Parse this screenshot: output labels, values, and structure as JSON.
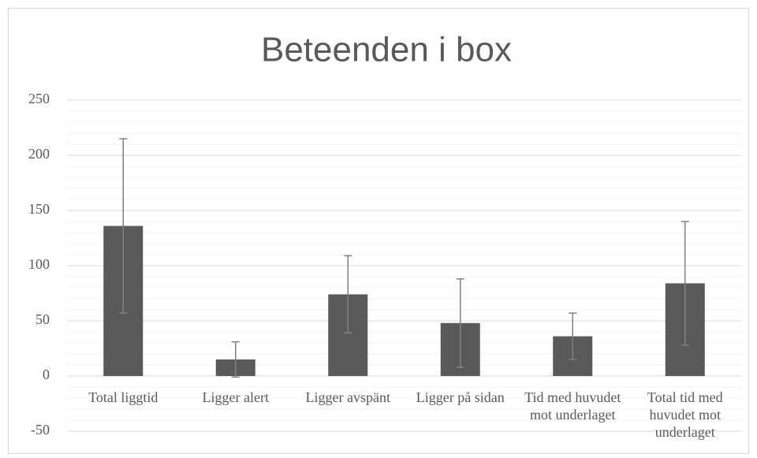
{
  "chart_data": {
    "type": "bar",
    "title": "Beteenden i box",
    "categories": [
      "Total liggtid",
      "Ligger alert",
      "Ligger avspänt",
      "Ligger på sidan",
      "Tid med huvudet mot underlaget",
      "Total tid med huvudet mot underlaget"
    ],
    "values": [
      136,
      15,
      74,
      48,
      36,
      84
    ],
    "errors": [
      79,
      16,
      35,
      40,
      21,
      56
    ],
    "color": "#595959",
    "error_color": "#808080",
    "ylim": [
      -50,
      250
    ],
    "yticks": [
      -50,
      0,
      50,
      100,
      150,
      200,
      250
    ],
    "yminorticks": [
      -40,
      -30,
      -20,
      -10,
      10,
      20,
      30,
      40,
      60,
      70,
      80,
      90,
      110,
      120,
      130,
      140,
      160,
      170,
      180,
      190,
      210,
      220,
      230,
      240
    ],
    "grid": true
  }
}
